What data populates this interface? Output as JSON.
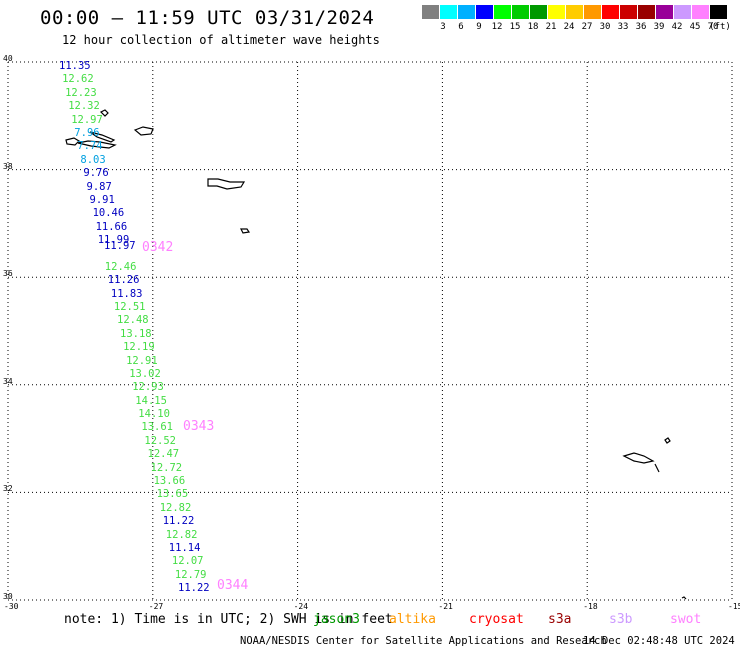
{
  "header": {
    "title": "00:00 – 11:59 UTC 03/31/2024",
    "subtitle": "12 hour collection of altimeter wave heights"
  },
  "legend": {
    "unit": "(ft)",
    "items": [
      {
        "color": "#808080",
        "label": ""
      },
      {
        "color": "#00ffff",
        "label": "3"
      },
      {
        "color": "#00b0ff",
        "label": "6"
      },
      {
        "color": "#0000ff",
        "label": "9"
      },
      {
        "color": "#00ff00",
        "label": "12"
      },
      {
        "color": "#00cc00",
        "label": "15"
      },
      {
        "color": "#009900",
        "label": "18"
      },
      {
        "color": "#ffff00",
        "label": "21"
      },
      {
        "color": "#ffcc00",
        "label": "24"
      },
      {
        "color": "#ff9900",
        "label": "27"
      },
      {
        "color": "#ff0000",
        "label": "30"
      },
      {
        "color": "#cc0000",
        "label": "33"
      },
      {
        "color": "#990000",
        "label": "36"
      },
      {
        "color": "#990099",
        "label": "39"
      },
      {
        "color": "#cc99ff",
        "label": "42"
      },
      {
        "color": "#ff80ff",
        "label": "45"
      },
      {
        "color": "#000000",
        "label": "70"
      }
    ]
  },
  "map": {
    "lon_range": [
      -30,
      -15
    ],
    "lat_range": [
      30,
      40
    ],
    "lon_ticks": [
      "-30",
      "-27",
      "-24",
      "-21",
      "-18",
      "-15"
    ],
    "lat_ticks": [
      "40",
      "38",
      "36",
      "34",
      "32",
      "30"
    ]
  },
  "wave_heights": [
    {
      "text": "11.35",
      "color": "#0000c0"
    },
    {
      "text": "12.62",
      "color": "#44dd44"
    },
    {
      "text": "12.23",
      "color": "#44dd44"
    },
    {
      "text": "12.32",
      "color": "#44dd44"
    },
    {
      "text": "12.97",
      "color": "#44dd44"
    },
    {
      "text": "7.96",
      "color": "#00a0e0"
    },
    {
      "text": "7.74",
      "color": "#00a0e0"
    },
    {
      "text": "8.03",
      "color": "#00a0e0"
    },
    {
      "text": "9.76",
      "color": "#0000c0"
    },
    {
      "text": "9.87",
      "color": "#0000c0"
    },
    {
      "text": "9.91",
      "color": "#0000c0"
    },
    {
      "text": "10.46",
      "color": "#0000c0"
    },
    {
      "text": "11.66",
      "color": "#0000c0"
    },
    {
      "text": "11.99",
      "color": "#0000c0"
    },
    {
      "text": "11.97",
      "color": "#0000c0"
    },
    {
      "text": "12.46",
      "color": "#44dd44"
    },
    {
      "text": "11.26",
      "color": "#0000c0"
    },
    {
      "text": "11.83",
      "color": "#0000c0"
    },
    {
      "text": "12.51",
      "color": "#44dd44"
    },
    {
      "text": "12.48",
      "color": "#44dd44"
    },
    {
      "text": "13.18",
      "color": "#44dd44"
    },
    {
      "text": "12.19",
      "color": "#44dd44"
    },
    {
      "text": "12.91",
      "color": "#44dd44"
    },
    {
      "text": "13.02",
      "color": "#44dd44"
    },
    {
      "text": "12.93",
      "color": "#44dd44"
    },
    {
      "text": "14.15",
      "color": "#44dd44"
    },
    {
      "text": "14.10",
      "color": "#44dd44"
    },
    {
      "text": "13.61",
      "color": "#44dd44"
    },
    {
      "text": "12.52",
      "color": "#44dd44"
    },
    {
      "text": "12.47",
      "color": "#44dd44"
    },
    {
      "text": "12.72",
      "color": "#44dd44"
    },
    {
      "text": "13.66",
      "color": "#44dd44"
    },
    {
      "text": "13.65",
      "color": "#44dd44"
    },
    {
      "text": "12.82",
      "color": "#44dd44"
    },
    {
      "text": "11.22",
      "color": "#0000c0"
    },
    {
      "text": "12.82",
      "color": "#44dd44"
    },
    {
      "text": "11.14",
      "color": "#0000c0"
    },
    {
      "text": "12.07",
      "color": "#44dd44"
    },
    {
      "text": "12.79",
      "color": "#44dd44"
    },
    {
      "text": "11.22",
      "color": "#0000c0"
    }
  ],
  "pass_times": [
    "0342",
    "0343",
    "0344"
  ],
  "footer": {
    "note": "note: 1) Time is in UTC; 2) SWH is in feet",
    "satellites": [
      {
        "name": "jason3",
        "color": "#009900"
      },
      {
        "name": "altika",
        "color": "#ff9900"
      },
      {
        "name": "cryosat",
        "color": "#ff0000"
      },
      {
        "name": "s3a",
        "color": "#990000"
      },
      {
        "name": "s3b",
        "color": "#cc99ff"
      },
      {
        "name": "swot",
        "color": "#ff80ff"
      }
    ],
    "credit": "NOAA/NESDIS Center for Satellite Applications and Research",
    "timestamp": "14 Dec 02:48:48 UTC 2024"
  }
}
